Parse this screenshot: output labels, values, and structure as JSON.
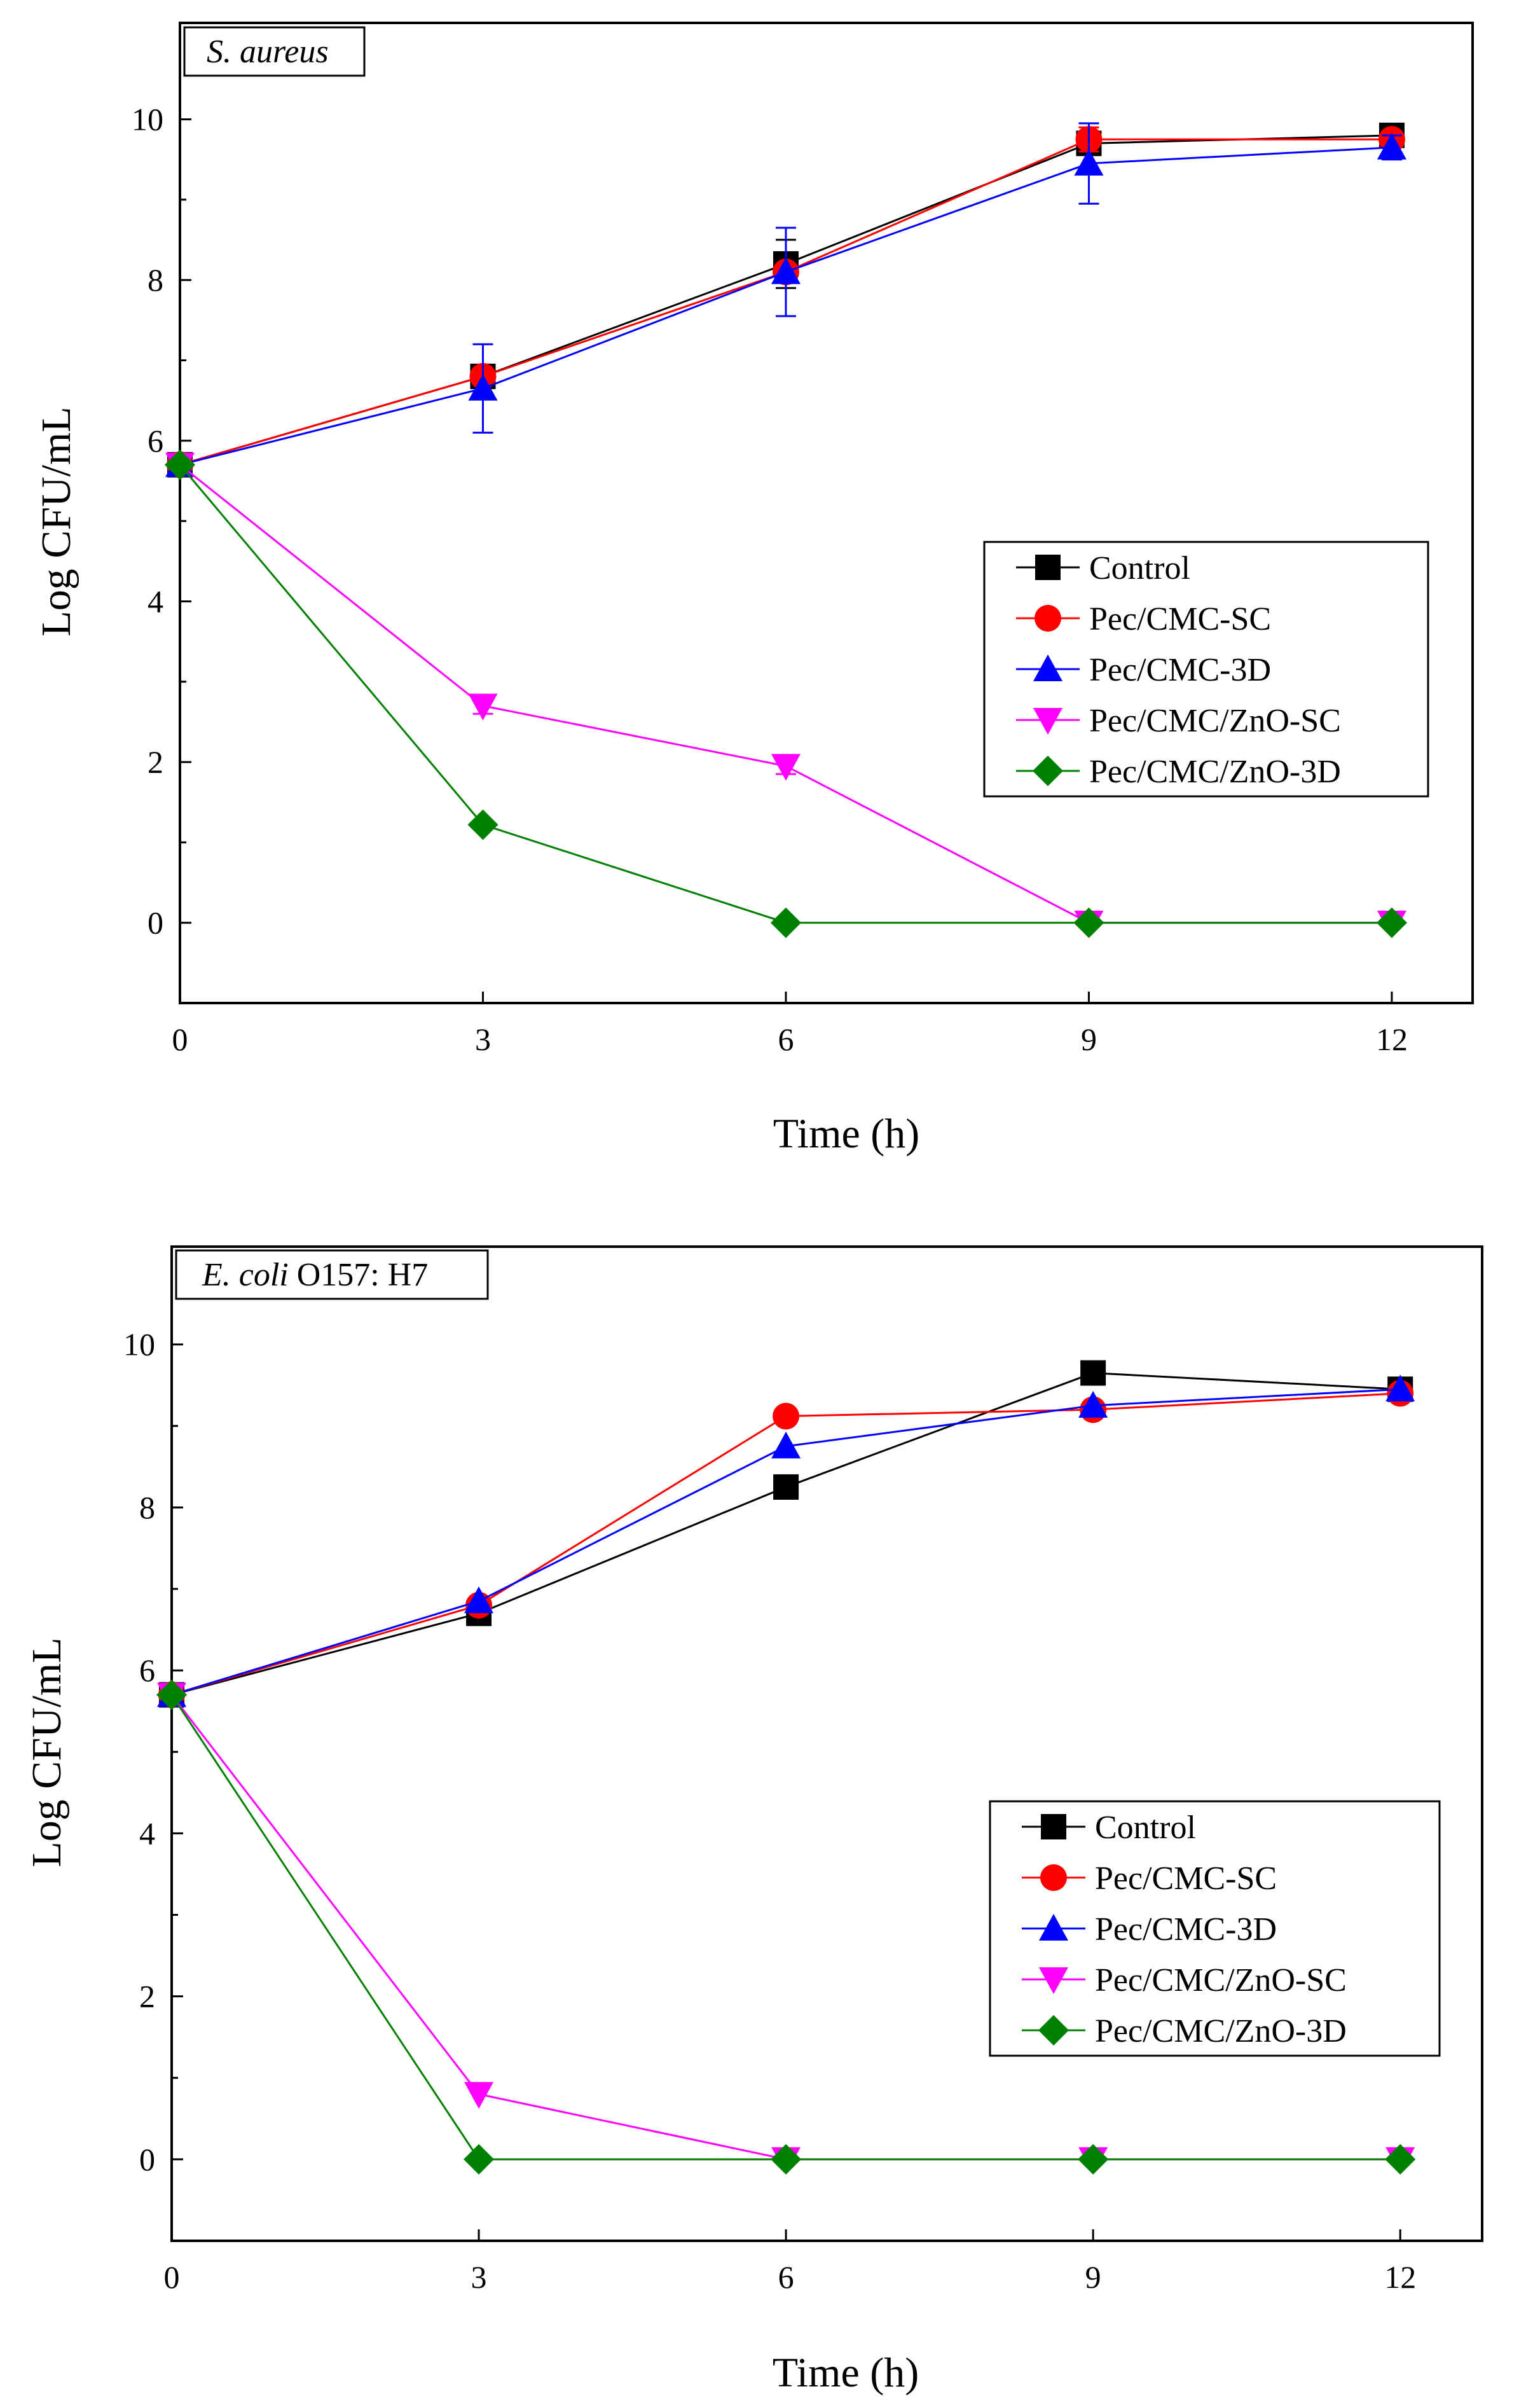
{
  "figure": {
    "background": "#ffffff"
  },
  "chart_data": [
    {
      "type": "line",
      "panel_label_parts": [
        {
          "text": "S. aureus",
          "italic": true
        }
      ],
      "xlabel": "Time (h)",
      "ylabel": "Log CFU/mL",
      "x": [
        0,
        3,
        6,
        9,
        12
      ],
      "xticks": [
        "0",
        "3",
        "6",
        "9",
        "12"
      ],
      "yticks": [
        "0",
        "2",
        "4",
        "6",
        "8",
        "10"
      ],
      "xlim": [
        0,
        12.8
      ],
      "ylim": [
        -1,
        11.2
      ],
      "legend_position": "center-right",
      "grid": false,
      "series": [
        {
          "name": "Control",
          "color": "#000000",
          "marker": "square",
          "values": [
            5.7,
            6.8,
            8.2,
            9.7,
            9.8
          ],
          "errors": [
            0,
            0,
            0.3,
            0.1,
            0.05
          ]
        },
        {
          "name": "Pec/CMC-SC",
          "color": "#ff0000",
          "marker": "circle",
          "values": [
            5.7,
            6.8,
            8.1,
            9.75,
            9.75
          ],
          "errors": [
            0,
            0,
            0,
            0.15,
            0
          ]
        },
        {
          "name": "Pec/CMC-3D",
          "color": "#0000ff",
          "marker": "triangle-up",
          "values": [
            5.7,
            6.65,
            8.1,
            9.45,
            9.65
          ],
          "errors": [
            0,
            0.55,
            0.55,
            0.5,
            0.15
          ]
        },
        {
          "name": "Pec/CMC/ZnO-SC",
          "color": "#ff00ff",
          "marker": "triangle-down",
          "values": [
            5.7,
            2.7,
            1.95,
            0,
            0
          ],
          "errors": [
            0,
            0.1,
            0.1,
            0,
            0
          ]
        },
        {
          "name": "Pec/CMC/ZnO-3D",
          "color": "#008000",
          "marker": "diamond",
          "values": [
            5.7,
            1.22,
            0,
            0,
            0
          ],
          "errors": [
            0,
            0,
            0,
            0,
            0
          ]
        }
      ]
    },
    {
      "type": "line",
      "panel_label_parts": [
        {
          "text": "E. coli",
          "italic": true
        },
        {
          "text": " O157: H7",
          "italic": false
        }
      ],
      "xlabel": "Time (h)",
      "ylabel": "Log CFU/mL",
      "x": [
        0,
        3,
        6,
        9,
        12
      ],
      "xticks": [
        "0",
        "3",
        "6",
        "9",
        "12"
      ],
      "yticks": [
        "0",
        "2",
        "4",
        "6",
        "8",
        "10"
      ],
      "xlim": [
        0,
        12.8
      ],
      "ylim": [
        -1,
        11.2
      ],
      "legend_position": "center-right",
      "grid": false,
      "series": [
        {
          "name": "Control",
          "color": "#000000",
          "marker": "square",
          "values": [
            5.7,
            6.7,
            8.25,
            9.65,
            9.45
          ],
          "errors": [
            0,
            0.1,
            0,
            0,
            0
          ]
        },
        {
          "name": "Pec/CMC-SC",
          "color": "#ff0000",
          "marker": "circle",
          "values": [
            5.7,
            6.8,
            9.12,
            9.2,
            9.4
          ],
          "errors": [
            0,
            0,
            0,
            0,
            0
          ]
        },
        {
          "name": "Pec/CMC-3D",
          "color": "#0000ff",
          "marker": "triangle-up",
          "values": [
            5.7,
            6.85,
            8.75,
            9.25,
            9.45
          ],
          "errors": [
            0,
            0,
            0,
            0,
            0
          ]
        },
        {
          "name": "Pec/CMC/ZnO-SC",
          "color": "#ff00ff",
          "marker": "triangle-down",
          "values": [
            5.7,
            0.8,
            0,
            0,
            0
          ],
          "errors": [
            0,
            0,
            0,
            0,
            0
          ]
        },
        {
          "name": "Pec/CMC/ZnO-3D",
          "color": "#008000",
          "marker": "diamond",
          "values": [
            5.7,
            0,
            0,
            0,
            0
          ],
          "errors": [
            0,
            0,
            0,
            0,
            0
          ]
        }
      ]
    }
  ]
}
